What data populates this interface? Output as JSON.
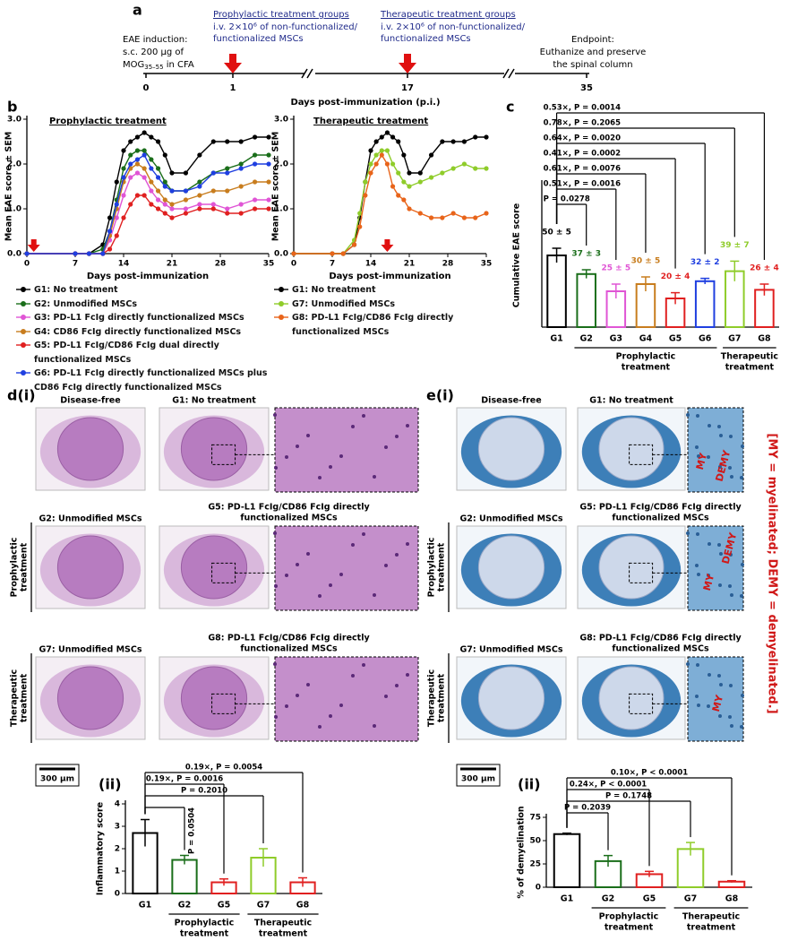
{
  "panel_a": {
    "letter": "a",
    "induction": {
      "lines": [
        "EAE induction:",
        "s.c. 200 µg of"
      ],
      "mog": "MOG",
      "mog_sub": "35–55",
      "cfa": " in CFA"
    },
    "prophylactic": {
      "title": "Prophylactic treatment groups",
      "lines": [
        "i.v. 2×10⁶ of non-functionalized/",
        "functionalized MSCs"
      ]
    },
    "therapeutic": {
      "title": "Therapeutic treatment groups",
      "lines": [
        "i.v. 2×10⁶ of non-functionalized/",
        "functionalized MSCs"
      ]
    },
    "endpoint": {
      "lines": [
        "Endpoint:",
        "Euthanize and preserve",
        "the spinal column"
      ]
    },
    "ticks": [
      0,
      1,
      17,
      35
    ],
    "axis_title": "Days post-immunization (p.i.)"
  },
  "chart_data": [
    {
      "type": "line",
      "panel_label": "b",
      "title": "Prophylactic treatment",
      "y_label": "Mean EAE score ± SEM",
      "x_label": "Days post-immunization",
      "x": [
        0,
        7,
        9,
        11,
        12,
        13,
        14,
        15,
        16,
        17,
        18,
        19,
        20,
        21,
        23,
        25,
        27,
        29,
        31,
        33,
        35
      ],
      "xlim": [
        0,
        35
      ],
      "xticks": [
        0,
        7,
        14,
        21,
        28,
        35
      ],
      "ylim": [
        0,
        3
      ],
      "yticks": [
        {
          "value": 0,
          "label": "0.0"
        },
        {
          "value": 1,
          "label": "1.0"
        },
        {
          "value": 2,
          "label": "2.0"
        },
        {
          "value": 3,
          "label": "3.0"
        }
      ],
      "treatment_day": 1,
      "legend": "below",
      "series": [
        {
          "name": "G1: No treatment",
          "color": "#000000",
          "values": [
            0,
            0,
            0,
            0.2,
            0.8,
            1.6,
            2.3,
            2.5,
            2.6,
            2.7,
            2.6,
            2.5,
            2.2,
            1.8,
            1.8,
            2.2,
            2.5,
            2.5,
            2.5,
            2.6,
            2.6
          ]
        },
        {
          "name": "G2: Unmodified MSCs",
          "color": "#1a6e1a",
          "values": [
            0,
            0,
            0,
            0.1,
            0.5,
            1.2,
            1.9,
            2.2,
            2.3,
            2.3,
            2.1,
            1.9,
            1.6,
            1.4,
            1.4,
            1.6,
            1.8,
            1.9,
            2.0,
            2.2,
            2.2
          ]
        },
        {
          "name": "G3: PD-L1 FcIg directly functionalized MSCs",
          "color": "#e055d5",
          "values": [
            0,
            0,
            0,
            0,
            0.3,
            0.8,
            1.3,
            1.7,
            1.8,
            1.7,
            1.4,
            1.2,
            1.1,
            1.0,
            1.0,
            1.1,
            1.1,
            1.0,
            1.1,
            1.2,
            1.2
          ]
        },
        {
          "name": "G4: CD86 FcIg directly functionalized MSCs",
          "color": "#c87d1e",
          "values": [
            0,
            0,
            0,
            0,
            0.4,
            1.0,
            1.6,
            1.9,
            2.0,
            1.9,
            1.6,
            1.4,
            1.2,
            1.1,
            1.2,
            1.3,
            1.4,
            1.4,
            1.5,
            1.6,
            1.6
          ]
        },
        {
          "name": "G5: PD-L1 FcIg/CD86 FcIg dual directly functionalized MSCs",
          "color": "#e02020",
          "values": [
            0,
            0,
            0,
            0,
            0.1,
            0.4,
            0.8,
            1.1,
            1.3,
            1.3,
            1.1,
            1.0,
            0.9,
            0.8,
            0.9,
            1.0,
            1.0,
            0.9,
            0.9,
            1.0,
            1.0
          ]
        },
        {
          "name": "G6: PD-L1 FcIg directly functionalized MSCs plus CD86 FcIg directly functionalized MSCs",
          "color": "#1f3fe0",
          "values": [
            0,
            0,
            0,
            0,
            0.5,
            1.1,
            1.7,
            2.0,
            2.1,
            2.2,
            1.9,
            1.7,
            1.5,
            1.4,
            1.4,
            1.5,
            1.8,
            1.8,
            1.9,
            2.0,
            2.0
          ]
        }
      ]
    },
    {
      "type": "line",
      "title": "Therapeutic treatment",
      "y_label": "Mean EAE score ± SEM",
      "x_label": "Days post-immunization",
      "x": [
        0,
        7,
        9,
        11,
        12,
        13,
        14,
        15,
        16,
        17,
        18,
        19,
        20,
        21,
        23,
        25,
        27,
        29,
        31,
        33,
        35
      ],
      "xlim": [
        0,
        35
      ],
      "xticks": [
        0,
        7,
        14,
        21,
        28,
        35
      ],
      "ylim": [
        0,
        3
      ],
      "yticks": [
        {
          "value": 0,
          "label": "0.0"
        },
        {
          "value": 1,
          "label": "1.0"
        },
        {
          "value": 2,
          "label": "2.0"
        },
        {
          "value": 3,
          "label": "3.0"
        }
      ],
      "treatment_day": 17,
      "legend": "below",
      "series": [
        {
          "name": "G1: No treatment",
          "color": "#000000",
          "values": [
            0,
            0,
            0,
            0.2,
            0.8,
            1.6,
            2.3,
            2.5,
            2.6,
            2.7,
            2.6,
            2.5,
            2.2,
            1.8,
            1.8,
            2.2,
            2.5,
            2.5,
            2.5,
            2.6,
            2.6
          ]
        },
        {
          "name": "G7: Unmodified MSCs",
          "color": "#8fcc2a",
          "values": [
            0,
            0,
            0,
            0.3,
            0.9,
            1.6,
            2.0,
            2.2,
            2.3,
            2.3,
            2.0,
            1.8,
            1.6,
            1.5,
            1.6,
            1.7,
            1.8,
            1.9,
            2.0,
            1.9,
            1.9
          ]
        },
        {
          "name": "G8: PD-L1 FcIg/CD86 FcIg directly functionalized MSCs",
          "color": "#e8641a",
          "values": [
            0,
            0,
            0,
            0.2,
            0.6,
            1.3,
            1.8,
            2.0,
            2.2,
            2.0,
            1.5,
            1.3,
            1.2,
            1.0,
            0.9,
            0.8,
            0.8,
            0.9,
            0.8,
            0.8,
            0.9
          ]
        }
      ]
    },
    {
      "type": "bar",
      "panel_label": "c",
      "y_label": "Cumulative EAE score",
      "categories": [
        "G1",
        "G2",
        "G3",
        "G4",
        "G5",
        "G6",
        "G7",
        "G8"
      ],
      "values": [
        50,
        37,
        25,
        30,
        20,
        32,
        39,
        26
      ],
      "errors": [
        5,
        3,
        5,
        5,
        4,
        2,
        7,
        4
      ],
      "value_labels": [
        "50 ± 5",
        "37 ± 3",
        "25 ± 5",
        "30 ± 5",
        "20 ± 4",
        "32 ± 2",
        "39 ± 7",
        "26 ± 4"
      ],
      "colors": [
        "#000000",
        "#1a6e1a",
        "#e055d5",
        "#c87d1e",
        "#e02020",
        "#1f3fe0",
        "#8fcc2a",
        "#e02020"
      ],
      "ylim": [
        0,
        100
      ],
      "comparisons": [
        {
          "label": "0.53×, P = 0.0014",
          "groups": [
            "G1",
            "G8"
          ]
        },
        {
          "label": "0.78×, P = 0.2065",
          "groups": [
            "G1",
            "G7"
          ]
        },
        {
          "label": "0.64×, P = 0.0020",
          "groups": [
            "G1",
            "G6"
          ]
        },
        {
          "label": "0.41×, P = 0.0002",
          "groups": [
            "G1",
            "G5"
          ]
        },
        {
          "label": "0.61×, P = 0.0076",
          "groups": [
            "G1",
            "G4"
          ]
        },
        {
          "label": "0.51×, P = 0.0016",
          "groups": [
            "G1",
            "G3"
          ]
        },
        {
          "label": "P = 0.0278",
          "groups": [
            "G1",
            "G2"
          ]
        }
      ],
      "groups": [
        {
          "label_lines": [
            "Prophylactic",
            "treatment"
          ],
          "from": "G2",
          "to": "G6"
        },
        {
          "label_lines": [
            "Therapeutic",
            "treatment"
          ],
          "from": "G7",
          "to": "G8"
        }
      ]
    },
    {
      "type": "bar",
      "panel_label": "(ii)",
      "y_label": "Inflammatory score",
      "categories": [
        "G1",
        "G2",
        "G5",
        "G7",
        "G8"
      ],
      "values": [
        2.7,
        1.5,
        0.5,
        1.6,
        0.5
      ],
      "errors": [
        0.6,
        0.2,
        0.15,
        0.4,
        0.2
      ],
      "colors": [
        "#000000",
        "#1a6e1a",
        "#e02020",
        "#8fcc2a",
        "#e02020"
      ],
      "ylim": [
        0,
        4
      ],
      "yticks": [
        0,
        1,
        2,
        3,
        4
      ],
      "comparisons": [
        {
          "label": "0.19×, P = 0.0054",
          "groups": [
            "G1",
            "G8"
          ]
        },
        {
          "label": "0.19×, P = 0.0016",
          "groups": [
            "G1",
            "G5"
          ]
        },
        {
          "label": "P = 0.2010",
          "groups": [
            "G1",
            "G7"
          ]
        },
        {
          "label": "P = 0.0504",
          "groups": [
            "G1",
            "G2"
          ],
          "label_rotation": "vertical"
        }
      ],
      "groups": [
        {
          "label_lines": [
            "Prophylactic",
            "treatment"
          ],
          "from": "G2",
          "to": "G5"
        },
        {
          "label_lines": [
            "Therapeutic",
            "treatment"
          ],
          "from": "G7",
          "to": "G8"
        }
      ]
    },
    {
      "type": "bar",
      "panel_label": "(ii)",
      "y_label": "% of demyelination",
      "categories": [
        "G1",
        "G2",
        "G5",
        "G7",
        "G8"
      ],
      "values": [
        57,
        28,
        14,
        41,
        6
      ],
      "errors": [
        1,
        6,
        3,
        7,
        1
      ],
      "colors": [
        "#000000",
        "#1a6e1a",
        "#e02020",
        "#8fcc2a",
        "#e02020"
      ],
      "ylim": [
        0,
        75
      ],
      "yticks": [
        0,
        25,
        50,
        75
      ],
      "comparisons": [
        {
          "label": "0.10×, P < 0.0001",
          "groups": [
            "G1",
            "G8"
          ]
        },
        {
          "label": "0.24×, P < 0.0001",
          "groups": [
            "G1",
            "G5"
          ]
        },
        {
          "label": "P = 0.1748",
          "groups": [
            "G1",
            "G7"
          ]
        },
        {
          "label": "P = 0.2039",
          "groups": [
            "G1",
            "G2"
          ]
        }
      ],
      "groups": [
        {
          "label_lines": [
            "Prophylactic",
            "treatment"
          ],
          "from": "G2",
          "to": "G5"
        },
        {
          "label_lines": [
            "Therapeutic",
            "treatment"
          ],
          "from": "G7",
          "to": "G8"
        }
      ]
    }
  ],
  "panel_d": {
    "letter": "d(i)",
    "labels": {
      "disease_free": "Disease-free",
      "g1": "G1: No treatment",
      "g2": "G2: Unmodified MSCs",
      "g5": [
        "G5: PD-L1 FcIg/CD86 FcIg directly",
        "functionalized MSCs"
      ],
      "g7": "G7: Unmodified MSCs",
      "g8": [
        "G8: PD-L1 FcIg/CD86 FcIg directly",
        "functionalized MSCs"
      ]
    },
    "row_labels": {
      "prophylactic": [
        "Prophylactic",
        "treatment"
      ],
      "therapeutic": [
        "Therapeutic",
        "treatment"
      ]
    },
    "scale_bar": "300 µm"
  },
  "panel_e": {
    "letter": "e(i)",
    "labels": {
      "disease_free": "Disease-free",
      "g1": "G1: No treatment",
      "g2": "G2: Unmodified MSCs",
      "g5": [
        "G5: PD-L1 FcIg/CD86 FcIg directly",
        "functionalized MSCs"
      ],
      "g7": "G7: Unmodified MSCs",
      "g8": [
        "G8: PD-L1 FcIg/CD86 FcIg directly",
        "functionalized MSCs"
      ]
    },
    "row_labels": {
      "prophylactic": [
        "Prophylactic",
        "treatment"
      ],
      "therapeutic": [
        "Therapeutic",
        "treatment"
      ]
    },
    "scale_bar": "300 µm",
    "my": "MY",
    "demy": "DEMY",
    "legend": "[MY = myelinated; DEMY = demyelinated.]"
  }
}
